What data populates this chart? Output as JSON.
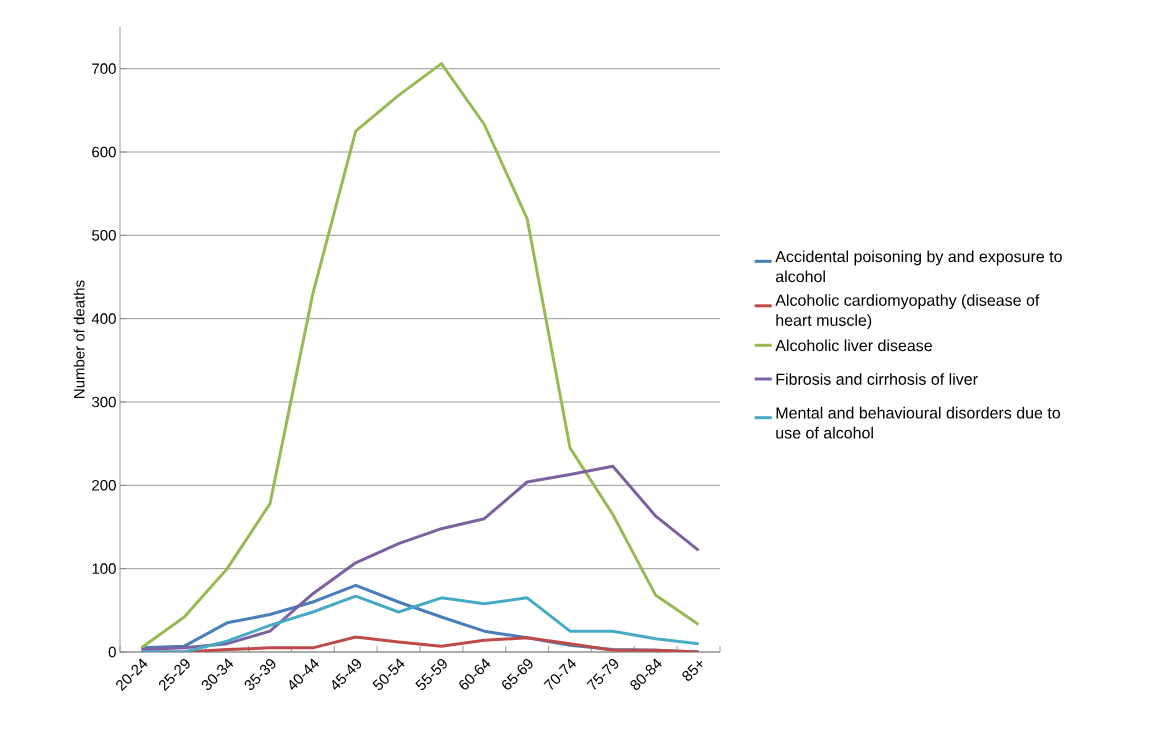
{
  "chart_data": {
    "type": "line",
    "ylabel": "Number of deaths",
    "categories": [
      "20-24",
      "25-29",
      "30-34",
      "35-39",
      "40-44",
      "45-49",
      "50-54",
      "55-59",
      "60-64",
      "65-69",
      "70-74",
      "75-79",
      "80-84",
      "85+"
    ],
    "series": [
      {
        "name": "Accidental poisoning by and exposure to alcohol",
        "color": "#4a7ebb",
        "values": [
          5,
          7,
          35,
          45,
          60,
          80,
          60,
          42,
          25,
          17,
          8,
          3,
          2,
          0
        ]
      },
      {
        "name": "Alcoholic cardiomyopathy (disease of heart muscle)",
        "color": "#be4b48",
        "values": [
          0,
          0,
          3,
          5,
          5,
          18,
          12,
          7,
          14,
          17,
          10,
          2,
          2,
          0
        ]
      },
      {
        "name": "Alcoholic liver disease",
        "color": "#98b954",
        "values": [
          5,
          42,
          100,
          178,
          430,
          625,
          668,
          706,
          633,
          520,
          245,
          165,
          68,
          33
        ]
      },
      {
        "name": "Fibrosis and cirrhosis of liver",
        "color": "#7d60a0",
        "values": [
          3,
          5,
          10,
          25,
          70,
          107,
          130,
          148,
          160,
          204,
          213,
          223,
          163,
          122
        ]
      },
      {
        "name": "Mental and behavioural disorders due to use of alcohol",
        "color": "#46aac5",
        "values": [
          0,
          0,
          13,
          32,
          48,
          67,
          48,
          65,
          58,
          65,
          25,
          25,
          16,
          10
        ]
      }
    ],
    "ylim": [
      0,
      750
    ],
    "yticks": [
      0,
      100,
      200,
      300,
      400,
      500,
      600,
      700
    ],
    "grid": "y",
    "legend": "right",
    "marker": "none",
    "line_style": "solid"
  }
}
